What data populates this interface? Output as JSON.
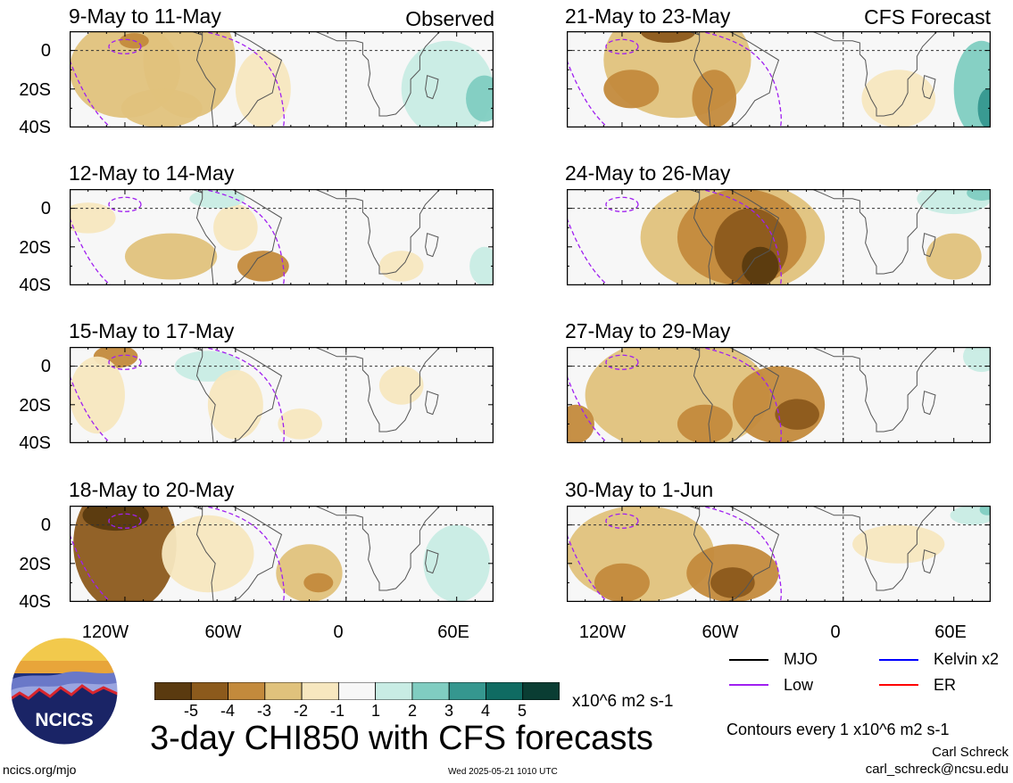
{
  "title": "3-day CHI850 with CFS forecasts",
  "observed_label": "Observed",
  "forecast_label": "CFS Forecast",
  "units": "x10^6 m2 s-1",
  "contour_note": "Contours every 1 x10^6 m2 s-1",
  "author": "Carl Schreck",
  "email": "carl_schreck@ncsu.edu",
  "site": "ncics.org/mjo",
  "timestamp": "Wed 2025-05-21 1010 UTC",
  "logo_text": "NCICS",
  "colors": {
    "brown_dark": "#5a3a0f",
    "brown": "#8c5a1c",
    "tan": "#c38a3c",
    "tan_light": "#e0c27c",
    "cream": "#f7e7bf",
    "neutral": "#f7f7f7",
    "teal_light": "#c8ece4",
    "teal": "#80cdc1",
    "teal_mid": "#35978f",
    "teal_dark": "#0f6b62",
    "teal_darkest": "#0a3d33",
    "mjo": "#000000",
    "low": "#a020f0",
    "kelvin": "#0000ff",
    "er": "#ff0000"
  },
  "colorbar": {
    "labels": [
      "-5",
      "-4",
      "-3",
      "-2",
      "-1",
      "1",
      "2",
      "3",
      "4",
      "5"
    ]
  },
  "legend": [
    {
      "label": "MJO",
      "color_key": "mjo"
    },
    {
      "label": "Kelvin x2",
      "color_key": "kelvin"
    },
    {
      "label": "Low",
      "color_key": "low"
    },
    {
      "label": "ER",
      "color_key": "er"
    }
  ],
  "chart_data": {
    "type": "heatmap",
    "panels": [
      {
        "period": "9-May to 11-May",
        "source": "Observed"
      },
      {
        "period": "12-May to 14-May",
        "source": "Observed"
      },
      {
        "period": "15-May to 17-May",
        "source": "Observed"
      },
      {
        "period": "18-May to 20-May",
        "source": "Observed"
      },
      {
        "period": "21-May to 23-May",
        "source": "CFS Forecast"
      },
      {
        "period": "24-May to 26-May",
        "source": "CFS Forecast"
      },
      {
        "period": "27-May to 29-May",
        "source": "CFS Forecast"
      },
      {
        "period": "30-May to 1-Jun",
        "source": "CFS Forecast"
      }
    ],
    "y_ticks": [
      "0",
      "20S",
      "40S"
    ],
    "x_ticks": [
      "120W",
      "60W",
      "0",
      "60E"
    ],
    "lon_range": [
      -150,
      80
    ],
    "lat_range": [
      -40,
      10
    ],
    "levels": [
      -5,
      -4,
      -3,
      -2,
      -1,
      1,
      2,
      3,
      4,
      5
    ]
  }
}
